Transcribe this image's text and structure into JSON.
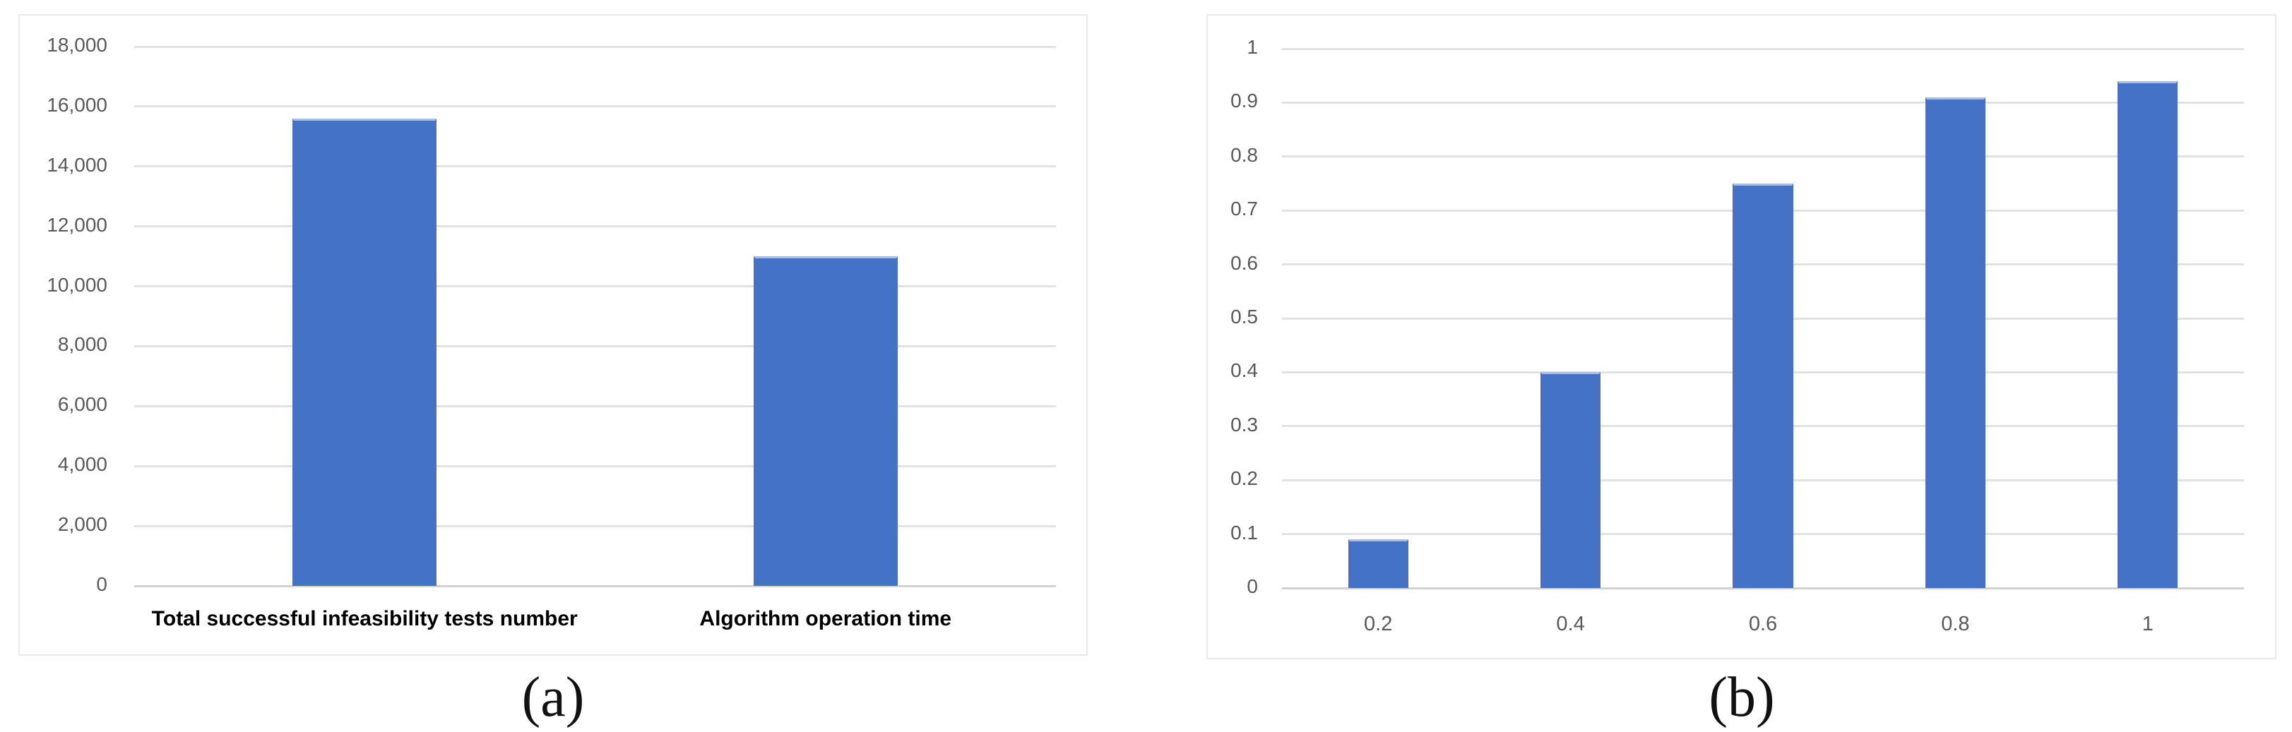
{
  "figure": {
    "caption_a": "(a)",
    "caption_b": "(b)"
  },
  "colors": {
    "bar_fill": "#4472C4",
    "bar_top_edge": "#a7bfe6",
    "bar_side_edge": "#4d6fbd",
    "gridline": "#e2e2e2",
    "axis_line": "#d2d2d2",
    "tick_label": "#595959",
    "category_label_a": "#000000",
    "category_label_b": "#595959",
    "panel_border": "#e9e9e9",
    "background": "#ffffff"
  },
  "chart_data": [
    {
      "id": "a",
      "type": "bar",
      "title": "",
      "categories": [
        "Total successful infeasibility tests number",
        "Algorithm operation time"
      ],
      "values": [
        15600,
        11000
      ],
      "xlabel": "",
      "ylabel": "",
      "ylim": [
        0,
        18000
      ],
      "ytick_step": 2000,
      "ytick_labels": [
        "0",
        "2,000",
        "4,000",
        "6,000",
        "8,000",
        "10,000",
        "12,000",
        "14,000",
        "16,000",
        "18,000"
      ],
      "grid": true,
      "legend": "none",
      "caption": "(a)",
      "category_label_style": "bold-black"
    },
    {
      "id": "b",
      "type": "bar",
      "title": "",
      "categories": [
        "0.2",
        "0.4",
        "0.6",
        "0.8",
        "1"
      ],
      "values": [
        0.09,
        0.4,
        0.75,
        0.91,
        0.94
      ],
      "xlabel": "",
      "ylabel": "",
      "ylim": [
        0,
        1
      ],
      "ytick_step": 0.1,
      "ytick_labels": [
        "0",
        "0.1",
        "0.2",
        "0.3",
        "0.4",
        "0.5",
        "0.6",
        "0.7",
        "0.8",
        "0.9",
        "1"
      ],
      "grid": true,
      "legend": "none",
      "caption": "(b)",
      "category_label_style": "gray"
    }
  ]
}
